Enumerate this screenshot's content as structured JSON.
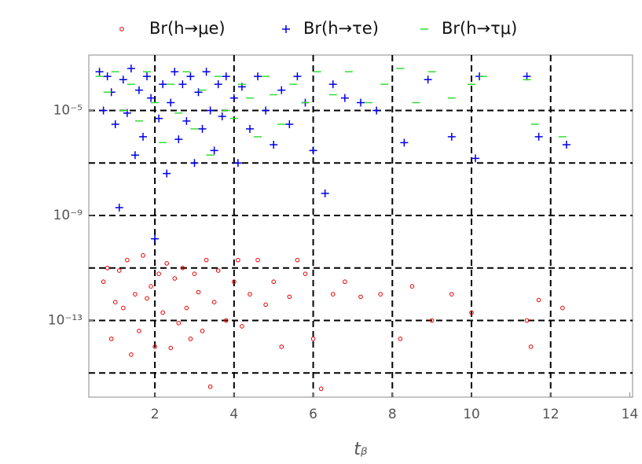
{
  "chart_data": {
    "type": "scatter",
    "xlabel": "tᵦ",
    "xlim": [
      0.33,
      14.07
    ],
    "ylim": [
      1.2e-16,
      0.0013
    ],
    "log_y": true,
    "grid": true,
    "legend": "top",
    "xticks": [
      2,
      4,
      6,
      8,
      10,
      12,
      14
    ],
    "xgrid": [
      2,
      4,
      6,
      8,
      10,
      12
    ],
    "yticks": [
      {
        "value": 1e-05,
        "label": "10⁻⁵"
      },
      {
        "value": 1e-09,
        "label": "10⁻⁹"
      },
      {
        "value": 1e-13,
        "label": "10⁻¹³"
      }
    ],
    "ygrid": [
      1e-05,
      1e-07,
      1e-09,
      1e-11,
      1e-13,
      1e-15
    ],
    "series": [
      {
        "name": "Br(h→μe)",
        "color": "#e60000",
        "marker": "circle",
        "x": [
          0.7,
          0.8,
          0.9,
          1.0,
          1.1,
          1.2,
          1.3,
          1.4,
          1.5,
          1.6,
          1.7,
          1.8,
          1.9,
          2.0,
          2.1,
          2.2,
          2.3,
          2.4,
          2.5,
          2.6,
          2.7,
          2.8,
          2.9,
          3.0,
          3.1,
          3.2,
          3.3,
          3.4,
          3.5,
          3.6,
          3.8,
          4.0,
          4.1,
          4.2,
          4.4,
          4.6,
          4.8,
          5.0,
          5.2,
          5.4,
          5.6,
          5.8,
          6.0,
          6.2,
          6.5,
          6.8,
          7.2,
          7.7,
          8.2,
          8.5,
          9.0,
          9.5,
          10.0,
          11.4,
          11.5,
          11.7,
          12.3
        ],
        "values": [
          3e-12,
          1e-11,
          2e-14,
          5e-13,
          8e-12,
          3e-13,
          2e-11,
          5e-15,
          1e-12,
          4e-14,
          3e-11,
          7e-13,
          2e-12,
          1e-14,
          6e-12,
          2e-13,
          1.5e-11,
          9e-15,
          4e-12,
          8e-14,
          1e-11,
          3e-13,
          2e-14,
          6e-12,
          1.2e-12,
          4e-14,
          2e-11,
          3e-16,
          5e-13,
          8e-12,
          1e-13,
          3e-12,
          2e-11,
          6e-14,
          1e-12,
          2e-11,
          4e-13,
          3e-12,
          1e-14,
          8e-13,
          2e-11,
          6e-12,
          2e-14,
          2.5e-16,
          1e-12,
          3e-12,
          8e-13,
          1e-12,
          2e-14,
          2e-12,
          1e-13,
          1e-12,
          2e-13,
          1e-13,
          1e-14,
          6e-13,
          3e-13
        ]
      },
      {
        "name": "Br(h→τe)",
        "color": "#0000e6",
        "marker": "plus",
        "x": [
          0.6,
          0.7,
          0.8,
          0.9,
          1.0,
          1.1,
          1.2,
          1.3,
          1.4,
          1.5,
          1.6,
          1.7,
          1.8,
          1.9,
          2.0,
          2.1,
          2.2,
          2.3,
          2.4,
          2.5,
          2.6,
          2.7,
          2.8,
          2.9,
          3.0,
          3.1,
          3.2,
          3.3,
          3.4,
          3.5,
          3.6,
          3.7,
          3.8,
          4.0,
          4.1,
          4.2,
          4.4,
          4.6,
          4.8,
          5.0,
          5.2,
          5.4,
          5.6,
          5.8,
          6.0,
          6.3,
          6.5,
          6.8,
          7.2,
          7.6,
          8.3,
          8.9,
          9.5,
          10.1,
          10.2,
          11.4,
          11.7,
          12.4
        ],
        "values": [
          0.0003,
          1e-05,
          0.0002,
          5e-05,
          3e-06,
          2e-09,
          0.00015,
          8e-06,
          0.0004,
          2e-07,
          6e-05,
          1e-06,
          0.0002,
          3e-05,
          1.3e-10,
          5e-06,
          0.0001,
          4e-08,
          2e-05,
          0.0003,
          8e-07,
          0.0001,
          4e-06,
          0.0002,
          1e-07,
          5e-05,
          2e-06,
          0.0003,
          1e-05,
          3e-07,
          0.0001,
          6e-06,
          0.0002,
          3e-05,
          1e-07,
          8e-05,
          2e-06,
          0.0002,
          1e-05,
          5e-07,
          6e-05,
          3e-06,
          0.0002,
          2e-05,
          3e-07,
          7e-09,
          0.0001,
          3e-05,
          2e-05,
          1e-05,
          6e-07,
          0.00015,
          1e-06,
          1.5e-07,
          0.0002,
          0.0002,
          1e-06,
          5e-07
        ]
      },
      {
        "name": "Br(h→τμ)",
        "color": "#33dd33",
        "marker": "dash",
        "x": [
          0.6,
          0.8,
          1.0,
          1.2,
          1.4,
          1.6,
          1.8,
          2.0,
          2.2,
          2.4,
          2.6,
          2.8,
          3.0,
          3.2,
          3.4,
          3.6,
          3.8,
          4.0,
          4.2,
          4.4,
          4.6,
          4.8,
          5.0,
          5.2,
          5.5,
          5.8,
          6.1,
          6.5,
          6.9,
          7.4,
          7.8,
          8.2,
          8.6,
          9.0,
          9.5,
          10.0,
          10.3,
          11.4,
          11.6,
          12.3
        ],
        "values": [
          0.0002,
          5e-05,
          0.0003,
          1e-05,
          0.0001,
          4e-06,
          0.0003,
          2e-05,
          6e-07,
          0.0001,
          8e-06,
          0.0003,
          2e-06,
          6e-05,
          2e-07,
          0.0002,
          1e-05,
          5e-06,
          0.0001,
          3e-05,
          1e-06,
          0.0002,
          4e-05,
          3e-06,
          0.0001,
          2e-05,
          0.0003,
          4e-05,
          0.0003,
          2e-05,
          0.0001,
          0.0004,
          2e-05,
          0.0003,
          3e-05,
          0.0001,
          0.0002,
          0.00015,
          3e-06,
          1e-06
        ]
      }
    ]
  }
}
